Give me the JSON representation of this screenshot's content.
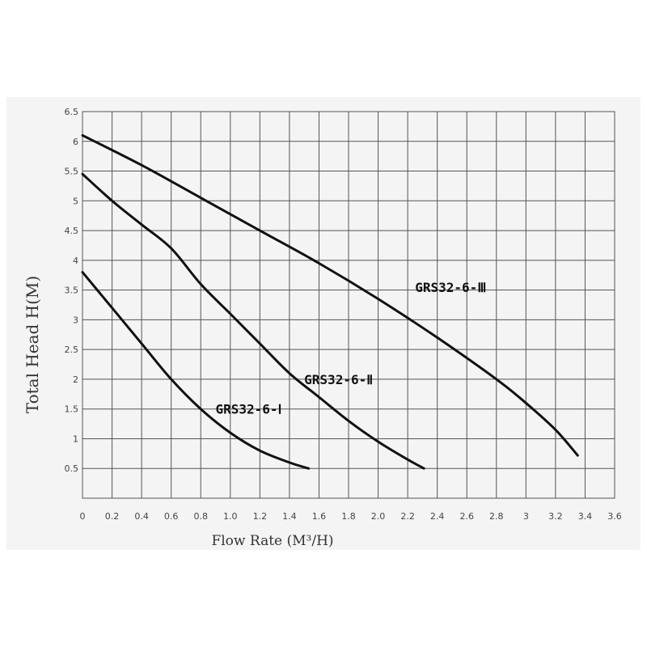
{
  "chart_data": {
    "type": "line",
    "title": "",
    "xlabel": "Flow Rate (M³/H)",
    "ylabel": "Total Head H(M)",
    "xlim": [
      0,
      3.6
    ],
    "ylim": [
      0,
      6.5
    ],
    "grid": true,
    "x_ticks": [
      "0",
      "0.2",
      "0.4",
      "0.6",
      "0.8",
      "1.0",
      "1.2",
      "1.4",
      "1.6",
      "1.8",
      "2.0",
      "2.2",
      "2.4",
      "2.6",
      "2.8",
      "3",
      "3.2",
      "3.4",
      "3.6"
    ],
    "y_ticks": [
      "0.5",
      "1",
      "1.5",
      "2",
      "2.5",
      "3",
      "3.5",
      "4",
      "4.5",
      "5",
      "5.5",
      "6",
      "6.5"
    ],
    "series": [
      {
        "name": "GRS32-6-Ⅰ",
        "x": [
          0,
          0.2,
          0.4,
          0.6,
          0.8,
          1.0,
          1.2,
          1.4,
          1.53
        ],
        "y": [
          3.8,
          3.2,
          2.6,
          2.0,
          1.5,
          1.1,
          0.8,
          0.6,
          0.5
        ]
      },
      {
        "name": "GRS32-6-Ⅱ",
        "x": [
          0,
          0.2,
          0.4,
          0.6,
          0.8,
          1.0,
          1.2,
          1.4,
          1.6,
          1.8,
          2.0,
          2.2,
          2.31
        ],
        "y": [
          5.45,
          5.0,
          4.6,
          4.2,
          3.6,
          3.1,
          2.6,
          2.1,
          1.7,
          1.3,
          0.95,
          0.65,
          0.5
        ]
      },
      {
        "name": "GRS32-6-Ⅲ",
        "x": [
          0,
          0.4,
          0.8,
          1.2,
          1.6,
          2.0,
          2.4,
          2.8,
          3.0,
          3.2,
          3.35
        ],
        "y": [
          6.1,
          5.6,
          5.05,
          4.5,
          3.95,
          3.35,
          2.7,
          2.0,
          1.6,
          1.15,
          0.72
        ]
      }
    ]
  }
}
